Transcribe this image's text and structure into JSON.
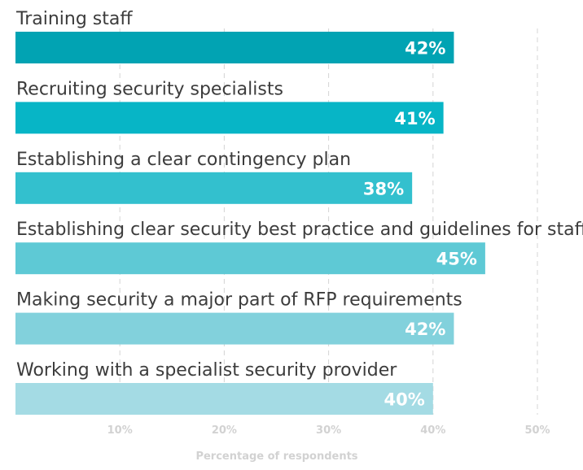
{
  "chart_data": {
    "type": "bar",
    "orientation": "horizontal",
    "categories": [
      "Training staff",
      "Recruiting security specialists",
      "Establishing a clear contingency plan",
      "Establishing clear security best practice and guidelines for staff",
      "Making security a major part of RFP requirements",
      "Working with a specialist security provider"
    ],
    "values": [
      42,
      41,
      38,
      45,
      42,
      40
    ],
    "value_labels": [
      "42%",
      "41%",
      "38%",
      "45%",
      "42%",
      "40%"
    ],
    "bar_colors": [
      "#01a3b3",
      "#07b5c6",
      "#33c0ce",
      "#5ec9d5",
      "#82d1dc",
      "#a4dbe4"
    ],
    "xlim": [
      0,
      50
    ],
    "xticks": [
      10,
      20,
      30,
      40,
      50
    ],
    "xtick_labels": [
      "10%",
      "20%",
      "30%",
      "40%",
      "50%"
    ],
    "xlabel": "Percentage of respondents",
    "grid": "vertical-dashed"
  }
}
